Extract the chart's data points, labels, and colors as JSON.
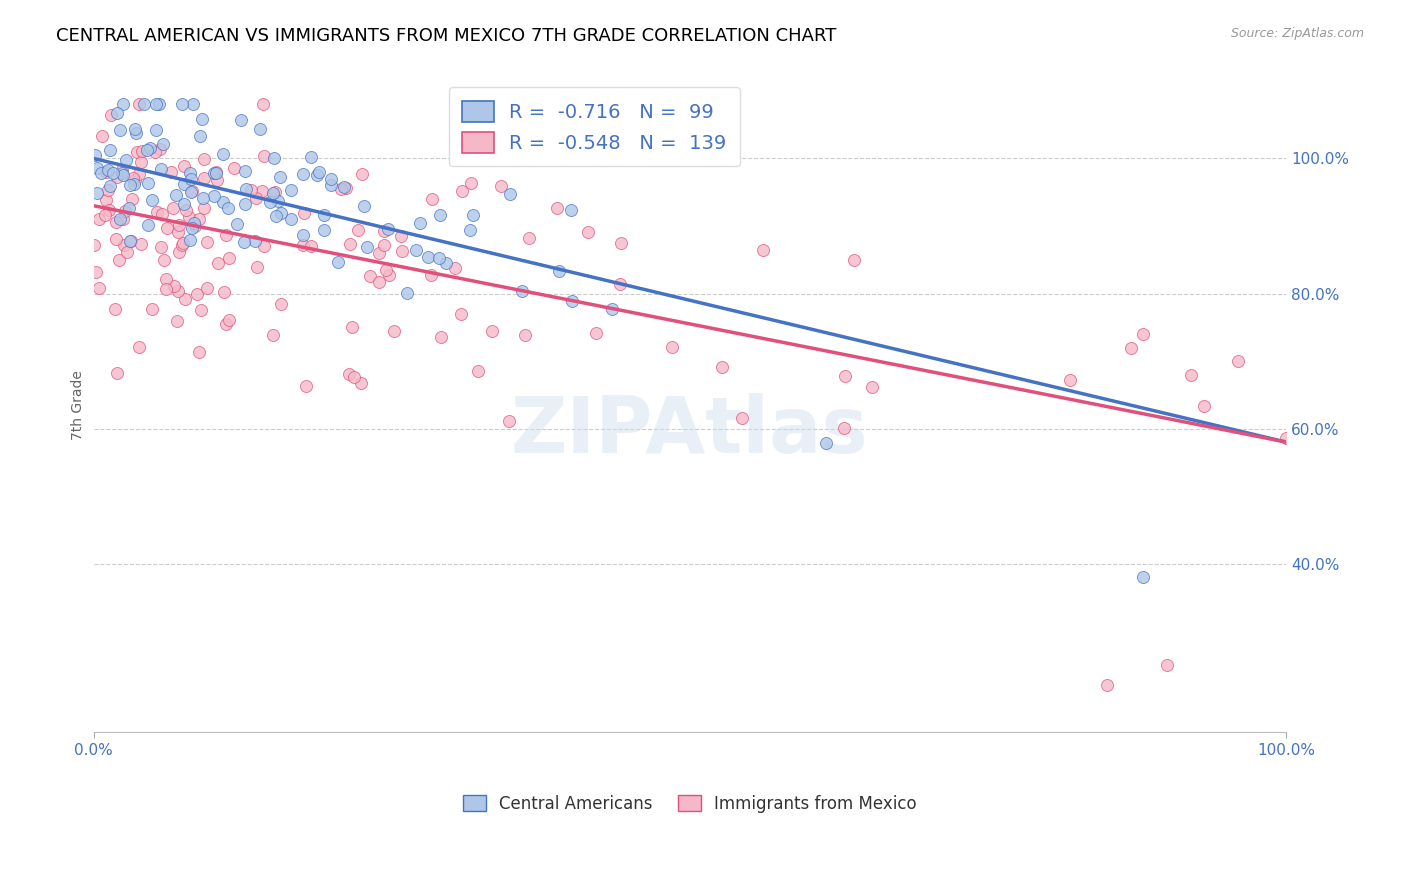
{
  "title": "CENTRAL AMERICAN VS IMMIGRANTS FROM MEXICO 7TH GRADE CORRELATION CHART",
  "source": "Source: ZipAtlas.com",
  "ylabel": "7th Grade",
  "watermark": "ZIPAtlas",
  "blue_R": -0.716,
  "blue_N": 99,
  "pink_R": -0.548,
  "pink_N": 139,
  "blue_color": "#aec6e8",
  "pink_color": "#f5b8c8",
  "blue_line_color": "#4472c4",
  "pink_line_color": "#e0507a",
  "blue_edge_color": "#4472c4",
  "pink_edge_color": "#e0507a",
  "legend_label_blue": "Central Americans",
  "legend_label_pink": "Immigrants from Mexico",
  "x_tick_labels": [
    "0.0%",
    "100.0%"
  ],
  "y_tick_labels": [
    "40.0%",
    "60.0%",
    "80.0%",
    "100.0%"
  ],
  "y_ticks": [
    0.4,
    0.6,
    0.8,
    1.0
  ],
  "title_fontsize": 13,
  "axis_fontsize": 10,
  "tick_fontsize": 11,
  "tick_color": "#4472c4",
  "ylabel_color": "#666666",
  "blue_line_intercept": 1.0,
  "blue_line_slope": -0.42,
  "pink_line_intercept": 0.93,
  "pink_line_slope": -0.35
}
